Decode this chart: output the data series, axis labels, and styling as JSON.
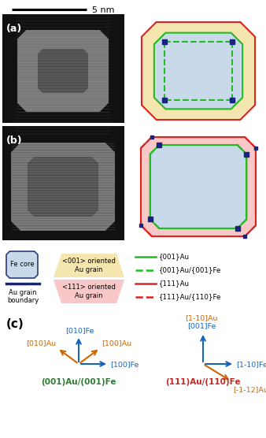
{
  "scale_bar_label": "5 nm",
  "panel_a_label": "(a)",
  "panel_b_label": "(b)",
  "panel_c_label": "(c)",
  "fe_core_color": "#c8daea",
  "fe_core_edge_color": "#2a3a7a",
  "au_grain_001_color": "#f5e6b0",
  "au_grain_111_color": "#f8c8c8",
  "green_solid": "#22bb22",
  "red_solid": "#dd2222",
  "navy": "#1a237e",
  "orange_text": "#cc6600",
  "blue_text": "#1565c0",
  "green_text": "#2e7d32",
  "red_text": "#c62828"
}
